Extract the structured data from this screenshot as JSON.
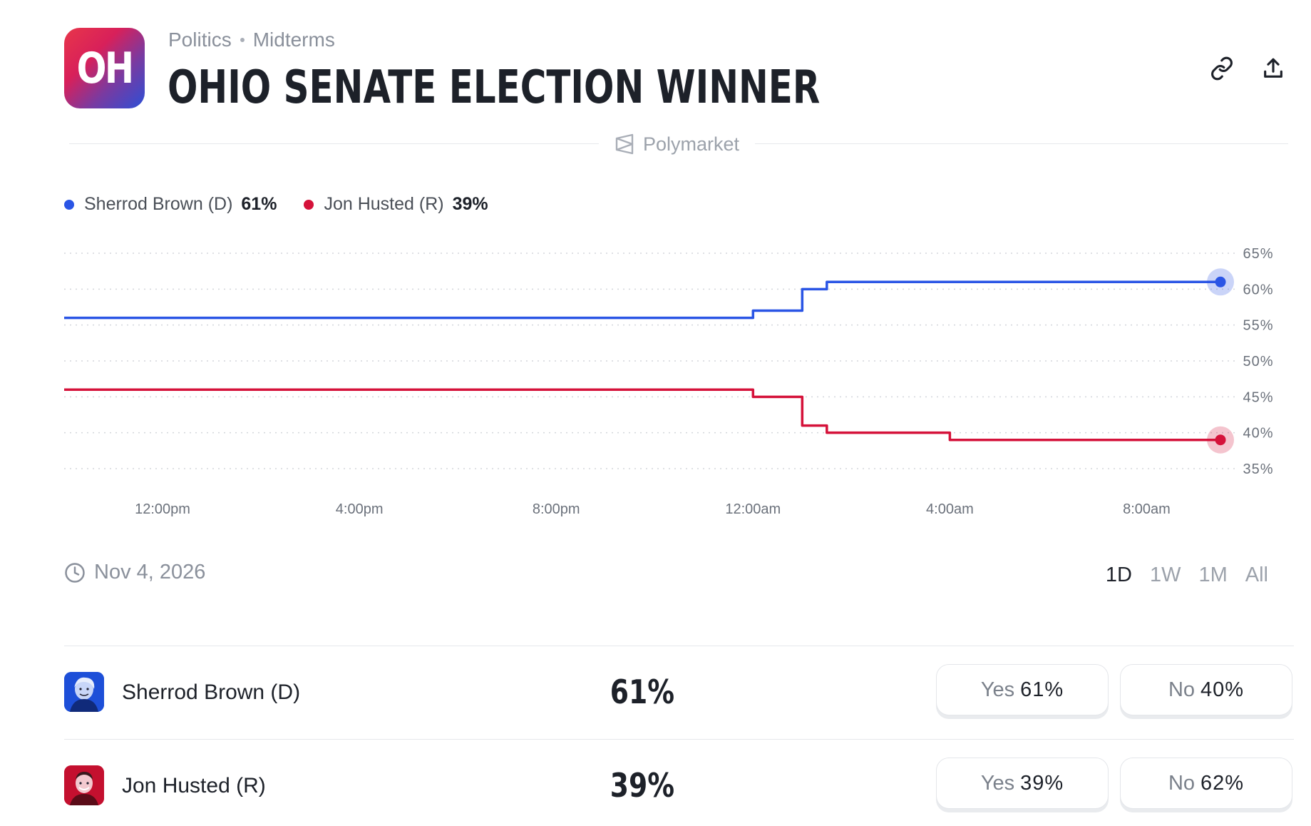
{
  "header": {
    "logo_text": "OH",
    "breadcrumb": [
      "Politics",
      "Midterms"
    ],
    "title": "OHIO SENATE ELECTION WINNER",
    "brand": "Polymarket"
  },
  "legend": [
    {
      "name": "Sherrod Brown (D)",
      "pct": "61%",
      "color": "#2a55e5"
    },
    {
      "name": "Jon Husted (R)",
      "pct": "39%",
      "color": "#d5123a"
    }
  ],
  "chart_data": {
    "type": "line",
    "x": [
      "10:00am",
      "11:00am",
      "12:00pm",
      "1:00pm",
      "2:00pm",
      "3:00pm",
      "4:00pm",
      "5:00pm",
      "6:00pm",
      "7:00pm",
      "8:00pm",
      "9:00pm",
      "10:00pm",
      "11:20pm",
      "12:00am",
      "12:30am",
      "1:00am",
      "1:30am",
      "2:00am",
      "3:00am",
      "4:00am",
      "6:00am",
      "8:00am",
      "9:30am"
    ],
    "x_tick_labels": [
      "12:00pm",
      "4:00pm",
      "8:00pm",
      "12:00am",
      "4:00am",
      "8:00am"
    ],
    "series": [
      {
        "name": "Sherrod Brown (D)",
        "color": "#2a55e5",
        "values": [
          56,
          56,
          56,
          56,
          56,
          56,
          56,
          56,
          56,
          56,
          56,
          56,
          56,
          56,
          57,
          57,
          60,
          61,
          61,
          61,
          61,
          61,
          61,
          61
        ]
      },
      {
        "name": "Jon Husted (R)",
        "color": "#d5123a",
        "values": [
          46,
          46,
          46,
          46,
          46,
          46,
          46,
          46,
          46,
          46,
          46,
          46,
          46,
          46,
          45,
          45,
          41,
          40,
          40,
          40,
          39,
          39,
          39,
          39
        ]
      }
    ],
    "y_ticks": [
      "65%",
      "60%",
      "55%",
      "50%",
      "45%",
      "40%",
      "35%"
    ],
    "ylim": [
      35,
      65
    ],
    "grid": true,
    "legend_position": "top-left"
  },
  "controls": {
    "date": "Nov 4, 2026",
    "ranges": [
      "1D",
      "1W",
      "1M",
      "All"
    ],
    "active_range": "1D"
  },
  "outcomes": [
    {
      "name": "Sherrod Brown (D)",
      "pct": "61%",
      "yes_label": "Yes",
      "yes_value": "61%",
      "no_label": "No",
      "no_value": "40%",
      "avatar_color": "#1d4fd8"
    },
    {
      "name": "Jon Husted (R)",
      "pct": "39%",
      "yes_label": "Yes",
      "yes_value": "39%",
      "no_label": "No",
      "no_value": "62%",
      "avatar_color": "#c4102f"
    }
  ]
}
